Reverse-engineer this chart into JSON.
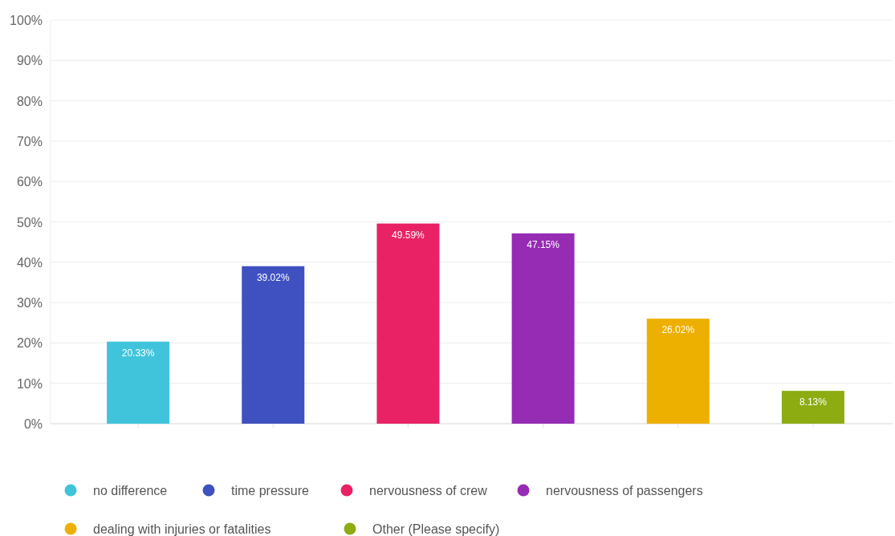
{
  "chart_data": {
    "type": "bar",
    "categories": [
      null,
      null,
      null,
      null,
      null,
      null
    ],
    "series": [
      {
        "name": "no difference",
        "color": "#40c4dc",
        "values": [
          20.33,
          null,
          null,
          null,
          null,
          null
        ],
        "value_labels": [
          "20.33%",
          null,
          null,
          null,
          null,
          null
        ]
      },
      {
        "name": "time pressure",
        "color": "#3f51c0",
        "values": [
          null,
          39.02,
          null,
          null,
          null,
          null
        ],
        "value_labels": [
          null,
          "39.02%",
          null,
          null,
          null,
          null
        ]
      },
      {
        "name": "nervousness of crew",
        "color": "#e82265",
        "values": [
          null,
          null,
          49.59,
          null,
          null,
          null
        ],
        "value_labels": [
          null,
          null,
          "49.59%",
          null,
          null,
          null
        ]
      },
      {
        "name": "nervousness of passengers",
        "color": "#962bb4",
        "values": [
          null,
          null,
          null,
          47.15,
          null,
          null
        ],
        "value_labels": [
          null,
          null,
          null,
          "47.15%",
          null,
          null
        ]
      },
      {
        "name": "dealing with injuries or fatalities",
        "color": "#eeb000",
        "values": [
          null,
          null,
          null,
          null,
          26.02,
          null
        ],
        "value_labels": [
          null,
          null,
          null,
          null,
          "26.02%",
          null
        ]
      },
      {
        "name": "Other (Please specify)",
        "color": "#8cac12",
        "values": [
          null,
          null,
          null,
          null,
          null,
          8.13
        ],
        "value_labels": [
          null,
          null,
          null,
          null,
          null,
          "8.13%"
        ]
      }
    ],
    "ylim": [
      0,
      100
    ],
    "yticks": [
      {
        "value": 0,
        "label": "0%"
      },
      {
        "value": 10,
        "label": "10%"
      },
      {
        "value": 20,
        "label": "20%"
      },
      {
        "value": 30,
        "label": "30%"
      },
      {
        "value": 40,
        "label": "40%"
      },
      {
        "value": 50,
        "label": "50%"
      },
      {
        "value": 60,
        "label": "60%"
      },
      {
        "value": 70,
        "label": "70%"
      },
      {
        "value": 80,
        "label": "80%"
      },
      {
        "value": 90,
        "label": "90%"
      },
      {
        "value": 100,
        "label": "100%"
      }
    ],
    "grid": "y",
    "legend": "bottom"
  }
}
